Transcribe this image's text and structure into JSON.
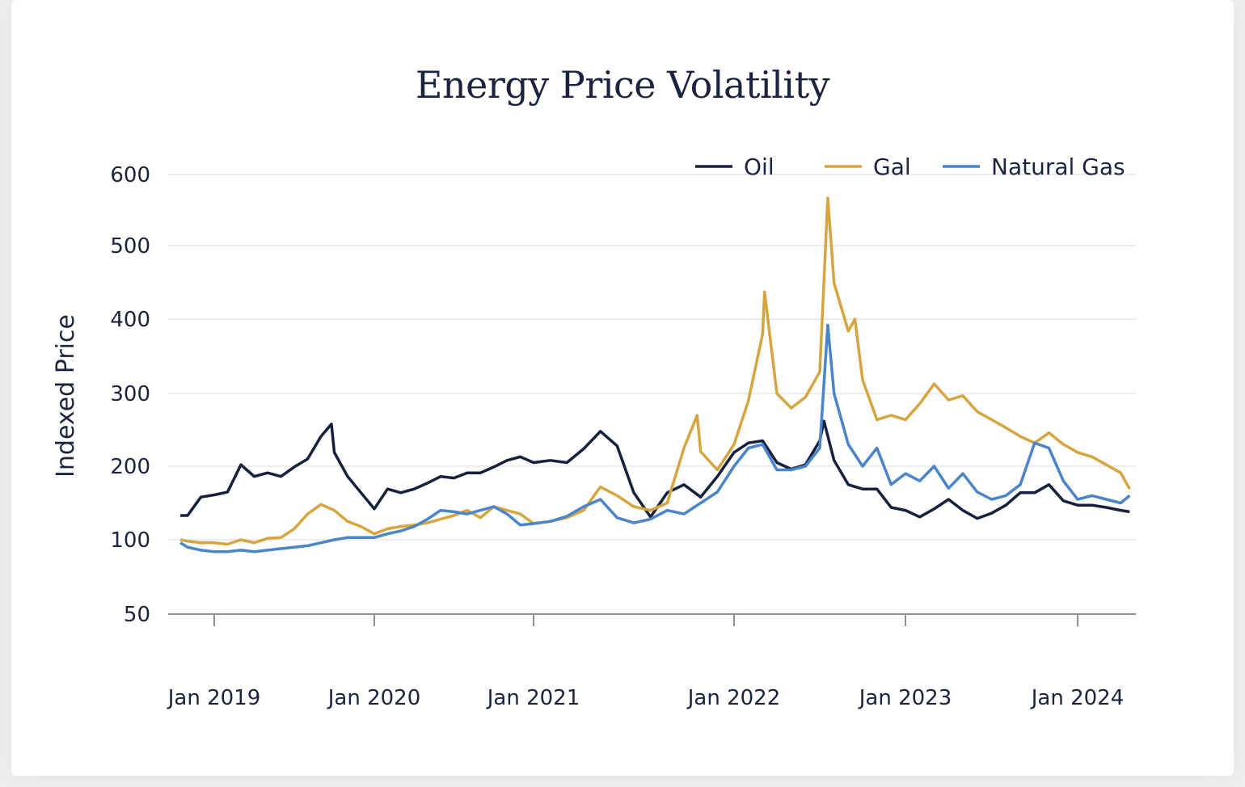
{
  "chart_data": {
    "type": "line",
    "title": "Energy Price Volatility",
    "xlabel": "",
    "ylabel": "Indexed Price",
    "ylim": [
      50,
      600
    ],
    "yticks": [
      50,
      100,
      200,
      300,
      400,
      500,
      600
    ],
    "xticks": [
      "Jan 2019",
      "Jan 2020",
      "Jan 2021",
      "Jan 2022",
      "Jan 2023",
      "Jan 2024"
    ],
    "grid": true,
    "legend_position": "top-right",
    "series": [
      {
        "name": "Oil",
        "color": "#16213d",
        "x": [
          "2018-10-15",
          "2018-11",
          "2018-12",
          "2019-01",
          "2019-02",
          "2019-03",
          "2019-04",
          "2019-05",
          "2019-06",
          "2019-07",
          "2019-08",
          "2019-09",
          "2019-09-25",
          "2019-10",
          "2019-11",
          "2019-12",
          "2020-01",
          "2020-02",
          "2020-03",
          "2020-04",
          "2020-05",
          "2020-06",
          "2020-07",
          "2020-08",
          "2020-09",
          "2020-10",
          "2020-11",
          "2020-12",
          "2021-01",
          "2021-02",
          "2021-03",
          "2021-04",
          "2021-05",
          "2021-06",
          "2021-07",
          "2021-08",
          "2021-09",
          "2021-10",
          "2021-11",
          "2021-12",
          "2022-01",
          "2022-02",
          "2022-03",
          "2022-04",
          "2022-05",
          "2022-06",
          "2022-07",
          "2022-07-10",
          "2022-08",
          "2022-09",
          "2022-10",
          "2022-11",
          "2022-12",
          "2023-01",
          "2023-02",
          "2023-03",
          "2023-04",
          "2023-05",
          "2023-06",
          "2023-07",
          "2023-08",
          "2023-09",
          "2023-10",
          "2023-11",
          "2023-12",
          "2024-01",
          "2024-02",
          "2024-03",
          "2024-04",
          "2024-04-20"
        ],
        "values": [
          133,
          133,
          158,
          161,
          165,
          202,
          186,
          191,
          186,
          199,
          210,
          241,
          258,
          219,
          186,
          164,
          142,
          169,
          164,
          169,
          177,
          186,
          184,
          191,
          191,
          199,
          208,
          213,
          205,
          208,
          205,
          224,
          248,
          228,
          164,
          131,
          164,
          175,
          158,
          186,
          219,
          232,
          235,
          205,
          196,
          202,
          235,
          262,
          208,
          175,
          169,
          169,
          144,
          140,
          131,
          142,
          155,
          140,
          129,
          136,
          147,
          164,
          164,
          175,
          153,
          147,
          147,
          144,
          140,
          138
        ]
      },
      {
        "name": "Gal",
        "color": "#d6a53f",
        "x": [
          "2018-10-15",
          "2018-11",
          "2018-12",
          "2019-01",
          "2019-02",
          "2019-03",
          "2019-04",
          "2019-05",
          "2019-06",
          "2019-07",
          "2019-08",
          "2019-09",
          "2019-10",
          "2019-11",
          "2019-12",
          "2020-01",
          "2020-02",
          "2020-03",
          "2020-04",
          "2020-05",
          "2020-06",
          "2020-07",
          "2020-08",
          "2020-09",
          "2020-10",
          "2020-11",
          "2020-12",
          "2021-01",
          "2021-02",
          "2021-03",
          "2021-04",
          "2021-05",
          "2021-06",
          "2021-07",
          "2021-08",
          "2021-09",
          "2021-10",
          "2021-10-25",
          "2021-11",
          "2021-12",
          "2022-01",
          "2022-02",
          "2022-03",
          "2022-03-05",
          "2022-04",
          "2022-05",
          "2022-06",
          "2022-07",
          "2022-07-18",
          "2022-08",
          "2022-09",
          "2022-09-15",
          "2022-10",
          "2022-11",
          "2022-12",
          "2023-01",
          "2023-02",
          "2023-03",
          "2023-04",
          "2023-05",
          "2023-06",
          "2023-07",
          "2023-08",
          "2023-09",
          "2023-10",
          "2023-11",
          "2023-12",
          "2024-01",
          "2024-02",
          "2024-03",
          "2024-04",
          "2024-04-20"
        ],
        "values": [
          100,
          99,
          98,
          98,
          97,
          100,
          98,
          102,
          103,
          115,
          135,
          148,
          140,
          125,
          118,
          108,
          115,
          118,
          120,
          123,
          128,
          133,
          140,
          130,
          145,
          140,
          135,
          122,
          125,
          130,
          140,
          172,
          160,
          145,
          140,
          150,
          225,
          270,
          220,
          195,
          230,
          290,
          380,
          437,
          300,
          280,
          295,
          329,
          567,
          449,
          384,
          400,
          318,
          264,
          270,
          264,
          286,
          313,
          291,
          297,
          275,
          264,
          253,
          241,
          232,
          246,
          230,
          219,
          213,
          202,
          191,
          169
        ]
      },
      {
        "name": "Natural Gas",
        "color": "#4a84c9",
        "x": [
          "2018-10-15",
          "2018-11",
          "2018-12",
          "2019-01",
          "2019-02",
          "2019-03",
          "2019-04",
          "2019-05",
          "2019-06",
          "2019-07",
          "2019-08",
          "2019-09",
          "2019-10",
          "2019-11",
          "2019-12",
          "2020-01",
          "2020-02",
          "2020-03",
          "2020-04",
          "2020-05",
          "2020-06",
          "2020-07",
          "2020-08",
          "2020-09",
          "2020-10",
          "2020-11",
          "2020-12",
          "2021-01",
          "2021-02",
          "2021-03",
          "2021-04",
          "2021-05",
          "2021-06",
          "2021-07",
          "2021-08",
          "2021-09",
          "2021-10",
          "2021-11",
          "2021-12",
          "2022-01",
          "2022-02",
          "2022-03",
          "2022-04",
          "2022-05",
          "2022-06",
          "2022-07",
          "2022-07-18",
          "2022-08",
          "2022-09",
          "2022-10",
          "2022-11",
          "2022-12",
          "2023-01",
          "2023-02",
          "2023-03",
          "2023-04",
          "2023-05",
          "2023-06",
          "2023-07",
          "2023-08",
          "2023-09",
          "2023-10",
          "2023-11",
          "2023-12",
          "2024-01",
          "2024-02",
          "2024-03",
          "2024-04",
          "2024-04-20"
        ],
        "values": [
          98,
          95,
          93,
          92,
          92,
          93,
          92,
          93,
          94,
          95,
          96,
          98,
          100,
          103,
          103,
          103,
          108,
          112,
          118,
          128,
          140,
          138,
          135,
          140,
          145,
          135,
          120,
          122,
          125,
          132,
          145,
          155,
          130,
          123,
          128,
          140,
          135,
          150,
          165,
          200,
          225,
          230,
          195,
          195,
          200,
          225,
          392,
          300,
          230,
          200,
          225,
          175,
          190,
          180,
          200,
          170,
          190,
          165,
          155,
          160,
          175,
          232,
          225,
          180,
          155,
          160,
          155,
          150,
          160
        ]
      }
    ]
  }
}
